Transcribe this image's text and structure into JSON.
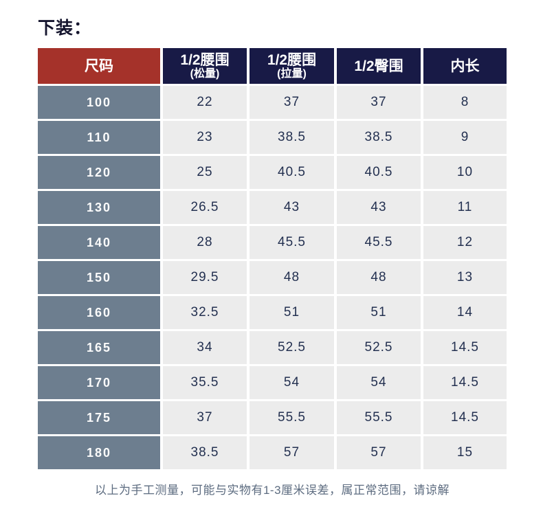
{
  "page": {
    "title": "下装：",
    "note": "以上为手工测量，可能与实物有1-3厘米误差，属正常范围，请谅解"
  },
  "table": {
    "columns": [
      {
        "label": "尺码",
        "sublabel": ""
      },
      {
        "label": "1/2腰围",
        "sublabel": "(松量)"
      },
      {
        "label": "1/2腰围",
        "sublabel": "(拉量)"
      },
      {
        "label": "1/2臀围",
        "sublabel": ""
      },
      {
        "label": "内长",
        "sublabel": ""
      }
    ],
    "rows": [
      {
        "size": "100",
        "values": [
          "22",
          "37",
          "37",
          "8"
        ]
      },
      {
        "size": "110",
        "values": [
          "23",
          "38.5",
          "38.5",
          "9"
        ]
      },
      {
        "size": "120",
        "values": [
          "25",
          "40.5",
          "40.5",
          "10"
        ]
      },
      {
        "size": "130",
        "values": [
          "26.5",
          "43",
          "43",
          "11"
        ]
      },
      {
        "size": "140",
        "values": [
          "28",
          "45.5",
          "45.5",
          "12"
        ]
      },
      {
        "size": "150",
        "values": [
          "29.5",
          "48",
          "48",
          "13"
        ]
      },
      {
        "size": "160",
        "values": [
          "32.5",
          "51",
          "51",
          "14"
        ]
      },
      {
        "size": "165",
        "values": [
          "34",
          "52.5",
          "52.5",
          "14.5"
        ]
      },
      {
        "size": "170",
        "values": [
          "35.5",
          "54",
          "54",
          "14.5"
        ]
      },
      {
        "size": "175",
        "values": [
          "37",
          "55.5",
          "55.5",
          "14.5"
        ]
      },
      {
        "size": "180",
        "values": [
          "38.5",
          "57",
          "57",
          "15"
        ]
      }
    ]
  },
  "colors": {
    "header_red": "#a5322a",
    "header_navy": "#181a46",
    "size_column_slate": "#6d7e8f",
    "value_cell_gray": "#ececec",
    "value_text_navy": "#233050",
    "note_text_slate": "#5d6c80",
    "title_text": "#15152e",
    "background": "#ffffff"
  }
}
